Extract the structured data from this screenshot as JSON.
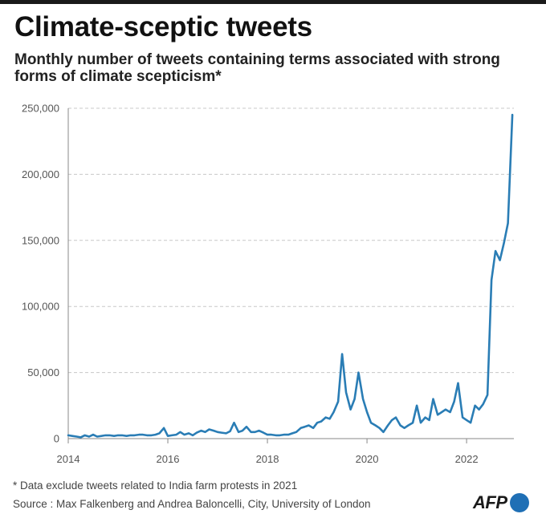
{
  "header": {
    "title": "Climate-sceptic tweets",
    "subtitle": "Monthly number of tweets containing terms associated with strong forms of climate scepticism*"
  },
  "footer": {
    "footnote": "* Data exclude tweets related to India farm protests in 2021",
    "source": "Source : Max Falkenberg and Andrea Baloncelli, City, University of London",
    "logo_text": "AFP"
  },
  "colors": {
    "line": "#2a7db5",
    "grid": "#c8c8c8",
    "axis": "#888888",
    "logo_dot": "#1f6fb5"
  },
  "chart_data": {
    "type": "line",
    "title": "Climate-sceptic tweets",
    "subtitle": "Monthly number of tweets containing terms associated with strong forms of climate scepticism*",
    "xlabel": "",
    "ylabel": "",
    "xlim": [
      2014,
      2022.95
    ],
    "ylim": [
      0,
      250000
    ],
    "x_ticks": [
      2014,
      2016,
      2018,
      2020,
      2022
    ],
    "x_tick_labels": [
      "2014",
      "2016",
      "2018",
      "2020",
      "2022"
    ],
    "y_ticks": [
      0,
      50000,
      100000,
      150000,
      200000,
      250000
    ],
    "y_tick_labels": [
      "0",
      "50,000",
      "100,000",
      "150,000",
      "200,000",
      "250,000"
    ],
    "grid": "horizontal dashed",
    "series": [
      {
        "x": [
          2014.0,
          2014.08,
          2014.17,
          2014.25,
          2014.33,
          2014.42,
          2014.5,
          2014.58,
          2014.67,
          2014.75,
          2014.83,
          2014.92,
          2015.0,
          2015.08,
          2015.17,
          2015.25,
          2015.33,
          2015.42,
          2015.5,
          2015.58,
          2015.67,
          2015.75,
          2015.83,
          2015.92,
          2016.0,
          2016.08,
          2016.17,
          2016.25,
          2016.33,
          2016.42,
          2016.5,
          2016.58,
          2016.67,
          2016.75,
          2016.83,
          2016.92,
          2017.0,
          2017.08,
          2017.17,
          2017.25,
          2017.33,
          2017.42,
          2017.5,
          2017.58,
          2017.67,
          2017.75,
          2017.83,
          2017.92,
          2018.0,
          2018.08,
          2018.17,
          2018.25,
          2018.33,
          2018.42,
          2018.5,
          2018.58,
          2018.67,
          2018.75,
          2018.83,
          2018.92,
          2019.0,
          2019.08,
          2019.17,
          2019.25,
          2019.33,
          2019.42,
          2019.5,
          2019.58,
          2019.67,
          2019.75,
          2019.83,
          2019.92,
          2020.0,
          2020.08,
          2020.17,
          2020.25,
          2020.33,
          2020.42,
          2020.5,
          2020.58,
          2020.67,
          2020.75,
          2020.83,
          2020.92,
          2021.0,
          2021.08,
          2021.17,
          2021.25,
          2021.33,
          2021.42,
          2021.5,
          2021.58,
          2021.67,
          2021.75,
          2021.83,
          2021.92,
          2022.0,
          2022.08,
          2022.17,
          2022.25,
          2022.33,
          2022.42,
          2022.5,
          2022.58,
          2022.67,
          2022.75,
          2022.83,
          2022.92
        ],
        "values": [
          2500,
          2000,
          1500,
          1000,
          2500,
          1500,
          3000,
          1500,
          2000,
          2500,
          2500,
          2000,
          2500,
          2500,
          2000,
          2500,
          2500,
          3000,
          3000,
          2500,
          2500,
          3000,
          4000,
          8000,
          2000,
          2500,
          3000,
          5000,
          3000,
          4000,
          2500,
          4500,
          6000,
          5000,
          7000,
          6000,
          5000,
          4500,
          4000,
          5500,
          12000,
          5000,
          6000,
          9000,
          5000,
          5000,
          6000,
          4500,
          3000,
          3000,
          2500,
          2500,
          3000,
          3000,
          4000,
          5000,
          8000,
          9000,
          10000,
          8000,
          12000,
          13000,
          16000,
          15000,
          20000,
          28000,
          64000,
          35000,
          22000,
          30000,
          50000,
          30000,
          20000,
          12000,
          10000,
          8000,
          5000,
          10000,
          14000,
          16000,
          10000,
          8000,
          10000,
          12000,
          25000,
          12000,
          16000,
          14000,
          30000,
          18000,
          20000,
          22000,
          20000,
          28000,
          42000,
          16000,
          14000,
          12000,
          25000,
          22000,
          26000,
          33000,
          120000,
          142000,
          135000,
          148000,
          163000,
          245000
        ]
      }
    ]
  }
}
